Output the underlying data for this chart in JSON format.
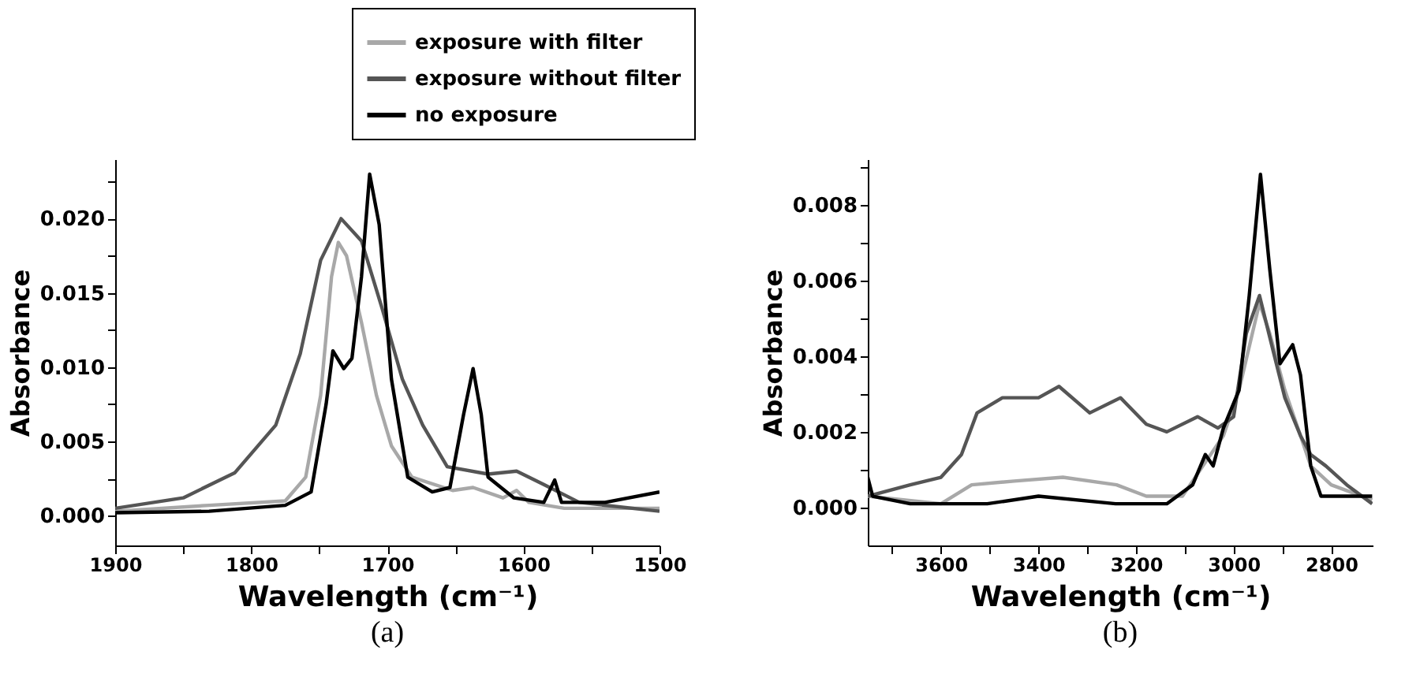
{
  "chart_data": [
    {
      "type": "line",
      "xlabel": "Wavelength (cm⁻¹)",
      "ylabel": "Absorbance",
      "annotations": [
        "(a)"
      ],
      "legend": "top",
      "xlim": [
        1900,
        1500
      ],
      "ylim": [
        -0.002,
        0.024
      ],
      "xticks": [
        1900,
        {
          "value": 1850,
          "label": null
        },
        1800,
        {
          "value": 1750,
          "label": null
        },
        1700,
        {
          "value": 1650,
          "label": null
        },
        1600,
        {
          "value": 1550,
          "label": null
        },
        1500
      ],
      "yticks": [
        {
          "value": 0,
          "label": "0.000"
        },
        {
          "value": 0.0025,
          "label": null
        },
        {
          "value": 0.005,
          "label": "0.005"
        },
        {
          "value": 0.0075,
          "label": null
        },
        {
          "value": 0.01,
          "label": "0.010"
        },
        {
          "value": 0.0125,
          "label": null
        },
        {
          "value": 0.015,
          "label": "0.015"
        },
        {
          "value": 0.0175,
          "label": null
        },
        {
          "value": 0.02,
          "label": "0.020"
        },
        {
          "value": 0.0225,
          "label": null
        }
      ],
      "series": [
        {
          "name": "exposure with filter",
          "color": "#a8a8a8",
          "x": [
            1900,
            1831,
            1775,
            1760,
            1749,
            1741,
            1736,
            1730,
            1719,
            1708,
            1697,
            1682,
            1652,
            1637,
            1615,
            1605,
            1596,
            1570,
            1500
          ],
          "values": [
            0.0003,
            0.0007,
            0.001,
            0.0026,
            0.0081,
            0.0161,
            0.0184,
            0.0175,
            0.013,
            0.0081,
            0.0047,
            0.0026,
            0.0017,
            0.0019,
            0.0012,
            0.0017,
            0.0009,
            0.0005,
            0.0005
          ]
        },
        {
          "name": "exposure without filter",
          "color": "#555555",
          "x": [
            1900,
            1850,
            1812,
            1782,
            1764,
            1749,
            1734,
            1719,
            1704,
            1689,
            1674,
            1656,
            1626,
            1605,
            1585,
            1559,
            1500
          ],
          "values": [
            0.0005,
            0.0012,
            0.0029,
            0.0061,
            0.0109,
            0.0172,
            0.02,
            0.0185,
            0.014,
            0.0092,
            0.0061,
            0.0033,
            0.0028,
            0.003,
            0.0021,
            0.0009,
            0.0003
          ]
        },
        {
          "name": "no exposure",
          "color": "#000000",
          "x": [
            1900,
            1831,
            1775,
            1756,
            1745,
            1740,
            1732,
            1726,
            1719,
            1713,
            1706,
            1697,
            1685,
            1667,
            1654,
            1644,
            1637,
            1631,
            1626,
            1607,
            1585,
            1577,
            1572,
            1540,
            1500
          ],
          "values": [
            0.0002,
            0.0003,
            0.0007,
            0.0016,
            0.0075,
            0.0111,
            0.0099,
            0.0106,
            0.0161,
            0.023,
            0.0196,
            0.0092,
            0.0026,
            0.0016,
            0.0019,
            0.0068,
            0.0099,
            0.0068,
            0.0026,
            0.0012,
            0.0009,
            0.0024,
            0.0009,
            0.0009,
            0.0016
          ]
        }
      ]
    },
    {
      "type": "line",
      "xlabel": "Wavelength (cm⁻¹)",
      "ylabel": "Absorbance",
      "annotations": [
        "(b)"
      ],
      "xlim": [
        3750,
        2715
      ],
      "ylim": [
        -0.001,
        0.0092
      ],
      "xticks": [
        {
          "value": 3700,
          "label": null
        },
        3600,
        {
          "value": 3500,
          "label": null
        },
        3400,
        {
          "value": 3300,
          "label": null
        },
        3200,
        {
          "value": 3100,
          "label": null
        },
        3000,
        {
          "value": 2900,
          "label": null
        },
        2800
      ],
      "yticks": [
        {
          "value": 0,
          "label": "0.000"
        },
        {
          "value": 0.001,
          "label": null
        },
        {
          "value": 0.002,
          "label": "0.002"
        },
        {
          "value": 0.003,
          "label": null
        },
        {
          "value": 0.004,
          "label": "0.004"
        },
        {
          "value": 0.005,
          "label": null
        },
        {
          "value": 0.006,
          "label": "0.006"
        },
        {
          "value": 0.007,
          "label": null
        },
        {
          "value": 0.008,
          "label": "0.008"
        },
        {
          "value": 0.009,
          "label": null
        }
      ],
      "series": [
        {
          "color": "#a8a8a8",
          "x": [
            3750,
            3600,
            3537,
            3450,
            3350,
            3240,
            3179,
            3105,
            3063,
            3021,
            2989,
            2947,
            2926,
            2895,
            2863,
            2842,
            2800,
            2716
          ],
          "values": [
            0.0003,
            0.0001,
            0.0006,
            0.0007,
            0.0008,
            0.0006,
            0.0003,
            0.0003,
            0.0011,
            0.0019,
            0.0031,
            0.0054,
            0.0046,
            0.0031,
            0.0019,
            0.0011,
            0.0006,
            0.0002
          ]
        },
        {
          "color": "#555555",
          "x": [
            3750,
            3663,
            3600,
            3558,
            3526,
            3474,
            3400,
            3358,
            3295,
            3232,
            3179,
            3137,
            3074,
            3032,
            3000,
            2974,
            2947,
            2926,
            2895,
            2863,
            2842,
            2811,
            2768,
            2716
          ],
          "values": [
            0.0003,
            0.0006,
            0.0008,
            0.0014,
            0.0025,
            0.0029,
            0.0029,
            0.0032,
            0.0025,
            0.0029,
            0.0022,
            0.002,
            0.0024,
            0.0021,
            0.0024,
            0.0046,
            0.0056,
            0.0045,
            0.0029,
            0.0019,
            0.0014,
            0.0011,
            0.0006,
            0.0001
          ]
        },
        {
          "color": "#000000",
          "x": [
            3750,
            3740,
            3663,
            3505,
            3400,
            3242,
            3137,
            3084,
            3058,
            3042,
            3021,
            2989,
            2968,
            2945,
            2926,
            2905,
            2879,
            2863,
            2842,
            2821,
            2716
          ],
          "values": [
            0.0008,
            0.0003,
            0.0001,
            0.0001,
            0.0003,
            0.0001,
            0.0001,
            0.0006,
            0.0014,
            0.0011,
            0.0021,
            0.0031,
            0.0056,
            0.0088,
            0.0063,
            0.0038,
            0.0043,
            0.0035,
            0.0011,
            0.0003,
            0.0003
          ]
        }
      ]
    }
  ]
}
